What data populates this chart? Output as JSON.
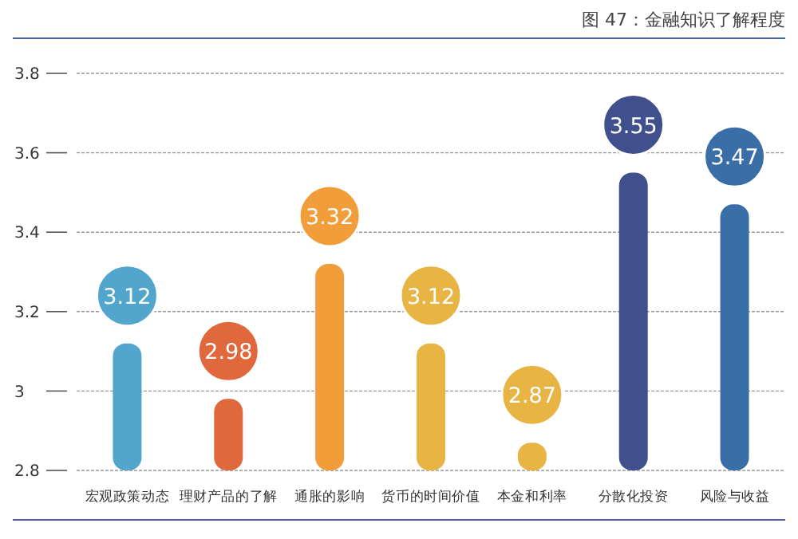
{
  "chart_data": {
    "type": "bar",
    "title": "图 47：金融知识了解程度",
    "categories": [
      "宏观政策动态",
      "理财产品的了解",
      "通胀的影响",
      "货币的时间价值",
      "本金和利率",
      "分散化投资",
      "风险与收益"
    ],
    "values": [
      3.12,
      2.98,
      3.32,
      3.12,
      2.87,
      3.55,
      3.47
    ],
    "colors": [
      "#52a5cc",
      "#e0683d",
      "#f09d3a",
      "#e8b444",
      "#e8b444",
      "#3f508c",
      "#3a6ea6"
    ],
    "ylim": [
      2.8,
      3.8
    ],
    "yticks": [
      2.8,
      3,
      3.2,
      3.4,
      3.6,
      3.8
    ],
    "grid": "y",
    "data_labels": true
  }
}
